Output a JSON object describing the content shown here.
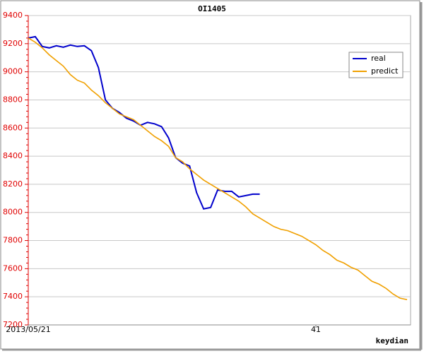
{
  "chart_data": {
    "type": "line",
    "title": "OI1405",
    "x_label": "keydian",
    "x": [
      0,
      1,
      2,
      3,
      4,
      5,
      6,
      7,
      8,
      9,
      10,
      11,
      12,
      13,
      14,
      15,
      16,
      17,
      18,
      19,
      20,
      21,
      22,
      23,
      24,
      25,
      26,
      27,
      28,
      29,
      30,
      31,
      32,
      33,
      34,
      35,
      36,
      37,
      38,
      39,
      40,
      41,
      42,
      43,
      44,
      45,
      46,
      47,
      48,
      49,
      50,
      51,
      52,
      53,
      54
    ],
    "series": [
      {
        "name": "real",
        "color": "#0000cc",
        "values": [
          9240,
          9250,
          9180,
          9170,
          9185,
          9175,
          9190,
          9180,
          9185,
          9150,
          9030,
          8800,
          8740,
          8710,
          8670,
          8650,
          8620,
          8640,
          8630,
          8610,
          8530,
          8390,
          8350,
          8330,
          8140,
          8025,
          8035,
          8160,
          8150,
          8150,
          8110,
          8120,
          8130,
          8130,
          null,
          null,
          null,
          null,
          null,
          null,
          null,
          null,
          null,
          null,
          null,
          null,
          null,
          null,
          null,
          null,
          null,
          null,
          null,
          null,
          null
        ]
      },
      {
        "name": "predict",
        "color": "#f0a000",
        "values": [
          9240,
          9210,
          9170,
          9120,
          9080,
          9040,
          8980,
          8940,
          8920,
          8870,
          8830,
          8780,
          8740,
          8700,
          8680,
          8660,
          8620,
          8580,
          8540,
          8510,
          8470,
          8390,
          8360,
          8310,
          8270,
          8230,
          8200,
          8170,
          8140,
          8110,
          8080,
          8040,
          7990,
          7960,
          7930,
          7900,
          7880,
          7870,
          7850,
          7830,
          7800,
          7770,
          7730,
          7700,
          7660,
          7640,
          7610,
          7590,
          7550,
          7510,
          7490,
          7460,
          7420,
          7390,
          7380
        ]
      }
    ],
    "xlim": [
      0,
      54.5
    ],
    "xticks": [
      {
        "value": 0,
        "label": "2013/05/21"
      },
      41
    ],
    "ylim": [
      7200,
      9400
    ],
    "yticks": [
      7200,
      7400,
      7600,
      7800,
      8000,
      8200,
      8400,
      8600,
      8800,
      9000,
      9200,
      9400
    ],
    "grid": true,
    "legend": "upper right"
  }
}
